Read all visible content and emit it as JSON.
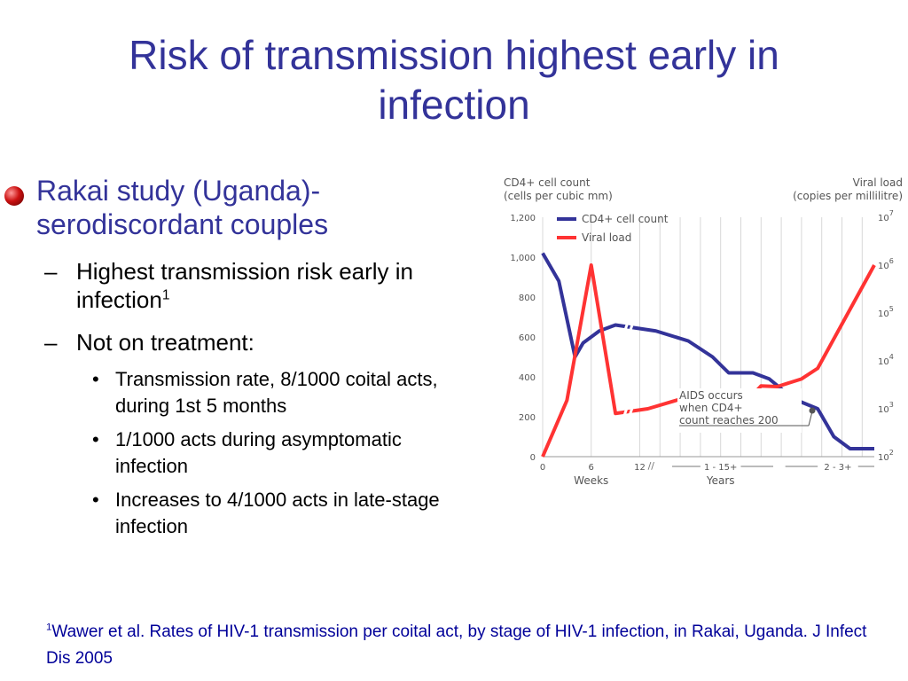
{
  "slide": {
    "title": "Risk of transmission highest early in infection",
    "bullet_main": "Rakai study (Uganda)- serodiscordant couples",
    "dash_symbol": "–",
    "sub1_text": "Highest transmission risk early in infection",
    "sub1_sup": "1",
    "sub2_text": "Not on treatment:",
    "dot_symbol": "•",
    "items": [
      "Transmission rate, 8/1000 coital acts, during 1st 5 months",
      "1/1000 acts during asymptomatic infection",
      "Increases to 4/1000 acts in  late-stage infection"
    ],
    "footnote_sup": "1",
    "footnote_text": "Wawer et al. Rates of HIV-1 transmission per coital act, by stage of HIV-1 infection, in Rakai, Uganda. J Infect Dis 2005"
  },
  "chart_data": {
    "type": "line",
    "left_axis_title": [
      "CD4+ cell count",
      "(cells per cubic mm)"
    ],
    "right_axis_title": [
      "Viral load",
      "(copies per millilitre)"
    ],
    "left_ticks": [
      0,
      200,
      400,
      600,
      800,
      1000,
      1200
    ],
    "left_tick_labels": [
      "0",
      "200",
      "400",
      "600",
      "800",
      "1,000",
      "1,200"
    ],
    "right_tick_labels": [
      {
        "base": "10",
        "exp": "2"
      },
      {
        "base": "10",
        "exp": "3"
      },
      {
        "base": "10",
        "exp": "4"
      },
      {
        "base": "10",
        "exp": "5"
      },
      {
        "base": "10",
        "exp": "6"
      },
      {
        "base": "10",
        "exp": "7"
      }
    ],
    "x_labels": {
      "weeks_ticks": [
        "0",
        "6",
        "12"
      ],
      "weeks_label": "Weeks",
      "years_range": "1  -  15+",
      "late_range": "2  -  3+",
      "years_label": "Years"
    },
    "annotation": [
      "AIDS occurs",
      "when CD4+",
      "count reaches 200"
    ],
    "colors": {
      "cd4": "#333399",
      "viral": "#ff3333",
      "grid": "#d8d8d8",
      "text": "#555555"
    },
    "series": [
      {
        "name": "CD4+ cell count",
        "values": [
          [
            0,
            1020
          ],
          [
            2,
            880
          ],
          [
            4,
            500
          ],
          [
            5,
            570
          ],
          [
            7,
            630
          ],
          [
            9,
            660
          ],
          [
            14,
            630
          ],
          [
            18,
            580
          ],
          [
            21,
            500
          ],
          [
            23,
            420
          ],
          [
            26,
            420
          ],
          [
            28,
            390
          ],
          [
            31,
            290
          ],
          [
            34,
            240
          ],
          [
            36,
            100
          ],
          [
            38,
            40
          ],
          [
            41,
            40
          ]
        ]
      },
      {
        "name": "Viral load",
        "values": [
          [
            0,
            100
          ],
          [
            3,
            1500
          ],
          [
            6,
            1000000
          ],
          [
            9,
            800
          ],
          [
            13,
            1000
          ],
          [
            19,
            2000
          ],
          [
            23,
            2300
          ],
          [
            25,
            1300
          ],
          [
            27,
            3000
          ],
          [
            29,
            2900
          ],
          [
            32,
            4200
          ],
          [
            34,
            7000
          ],
          [
            41,
            1000000
          ]
        ]
      }
    ]
  }
}
